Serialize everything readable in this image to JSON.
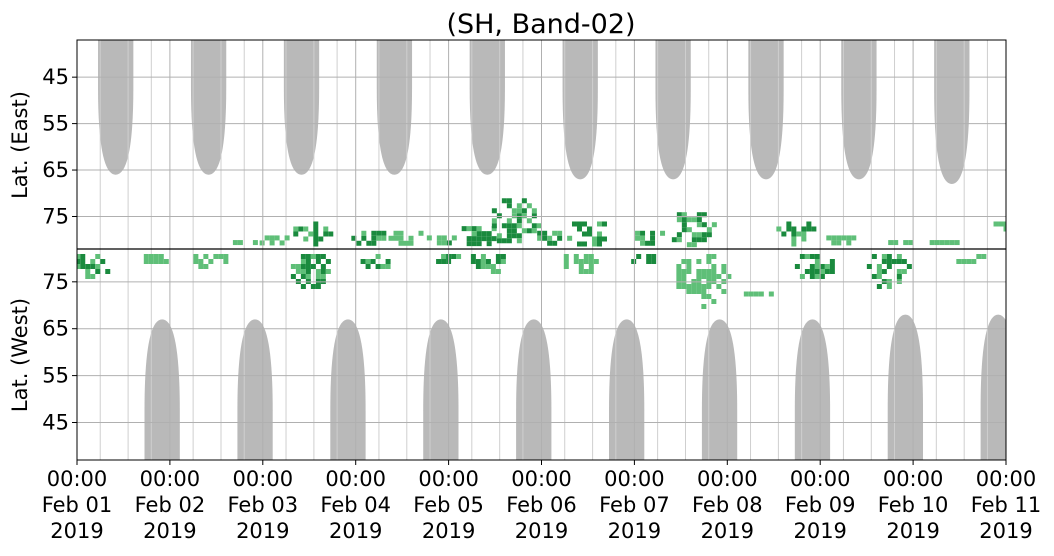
{
  "chart_data": {
    "type": "heatmap",
    "title": "(SH, Band-02)",
    "panels": [
      {
        "ylabel": "Lat. (East)",
        "yticks": [
          45,
          55,
          65,
          75
        ],
        "ylim": [
          37,
          82
        ]
      },
      {
        "ylabel": "Lat. (West)",
        "yticks": [
          75,
          65,
          55,
          45
        ],
        "ylim": [
          82,
          37
        ]
      }
    ],
    "x_ticks": [
      {
        "time": "00:00",
        "date": "Feb 01",
        "year": "2019"
      },
      {
        "time": "00:00",
        "date": "Feb 02",
        "year": "2019"
      },
      {
        "time": "00:00",
        "date": "Feb 03",
        "year": "2019"
      },
      {
        "time": "00:00",
        "date": "Feb 04",
        "year": "2019"
      },
      {
        "time": "00:00",
        "date": "Feb 05",
        "year": "2019"
      },
      {
        "time": "00:00",
        "date": "Feb 06",
        "year": "2019"
      },
      {
        "time": "00:00",
        "date": "Feb 07",
        "year": "2019"
      },
      {
        "time": "00:00",
        "date": "Feb 08",
        "year": "2019"
      },
      {
        "time": "00:00",
        "date": "Feb 09",
        "year": "2019"
      },
      {
        "time": "00:00",
        "date": "Feb 10",
        "year": "2019"
      },
      {
        "time": "00:00",
        "date": "Feb 11",
        "year": "2019"
      }
    ],
    "xlim": [
      "2019-02-01 00:00",
      "2019-02-11 00:00"
    ],
    "grid": true,
    "colors": {
      "no_data": "#b9b9b9",
      "echo_strong": "#1a8a3e",
      "echo_weak": "#5fbf78",
      "grid": "#b0b0b0"
    },
    "no_data_regions": {
      "east": [
        {
          "center": "2019-02-01 10:00",
          "min_lat": 66
        },
        {
          "center": "2019-02-02 10:00",
          "min_lat": 66
        },
        {
          "center": "2019-02-03 10:00",
          "min_lat": 66
        },
        {
          "center": "2019-02-04 10:00",
          "min_lat": 66
        },
        {
          "center": "2019-02-05 10:00",
          "min_lat": 66
        },
        {
          "center": "2019-02-06 10:00",
          "min_lat": 67
        },
        {
          "center": "2019-02-07 10:00",
          "min_lat": 67
        },
        {
          "center": "2019-02-08 10:00",
          "min_lat": 67
        },
        {
          "center": "2019-02-09 10:00",
          "min_lat": 67
        },
        {
          "center": "2019-02-10 10:00",
          "min_lat": 68
        }
      ],
      "west": [
        {
          "center": "2019-02-01 22:00",
          "min_lat": 67
        },
        {
          "center": "2019-02-02 22:00",
          "min_lat": 67
        },
        {
          "center": "2019-02-03 22:00",
          "min_lat": 67
        },
        {
          "center": "2019-02-04 22:00",
          "min_lat": 67
        },
        {
          "center": "2019-02-05 22:00",
          "min_lat": 67
        },
        {
          "center": "2019-02-06 22:00",
          "min_lat": 67
        },
        {
          "center": "2019-02-07 22:00",
          "min_lat": 67
        },
        {
          "center": "2019-02-08 22:00",
          "min_lat": 67
        },
        {
          "center": "2019-02-09 22:00",
          "min_lat": 68
        },
        {
          "center": "2019-02-10 22:00",
          "min_lat": 68
        }
      ]
    },
    "echo_clusters": {
      "east": [
        {
          "day": 1.8,
          "lat_min": 79,
          "lat_max": 81,
          "intensity": "weak"
        },
        {
          "day": 2.1,
          "lat_min": 78,
          "lat_max": 81,
          "intensity": "weak"
        },
        {
          "day": 2.5,
          "lat_min": 75,
          "lat_max": 81,
          "intensity": "strong"
        },
        {
          "day": 3.1,
          "lat_min": 77,
          "lat_max": 81,
          "intensity": "strong"
        },
        {
          "day": 3.5,
          "lat_min": 77,
          "lat_max": 81,
          "intensity": "weak"
        },
        {
          "day": 3.9,
          "lat_min": 78,
          "lat_max": 81,
          "intensity": "strong"
        },
        {
          "day": 4.3,
          "lat_min": 76,
          "lat_max": 81,
          "intensity": "strong"
        },
        {
          "day": 4.7,
          "lat_min": 70,
          "lat_max": 81,
          "intensity": "strong"
        },
        {
          "day": 5.1,
          "lat_min": 77,
          "lat_max": 81,
          "intensity": "strong"
        },
        {
          "day": 5.5,
          "lat_min": 75,
          "lat_max": 81,
          "intensity": "strong"
        },
        {
          "day": 6.1,
          "lat_min": 77,
          "lat_max": 81,
          "intensity": "strong"
        },
        {
          "day": 6.6,
          "lat_min": 73,
          "lat_max": 81,
          "intensity": "strong"
        },
        {
          "day": 7.7,
          "lat_min": 75,
          "lat_max": 81,
          "intensity": "strong"
        },
        {
          "day": 8.2,
          "lat_min": 78,
          "lat_max": 81,
          "intensity": "weak"
        },
        {
          "day": 8.8,
          "lat_min": 79,
          "lat_max": 81,
          "intensity": "weak"
        },
        {
          "day": 9.3,
          "lat_min": 79,
          "lat_max": 81,
          "intensity": "weak"
        },
        {
          "day": 10.0,
          "lat_min": 75,
          "lat_max": 78,
          "intensity": "weak"
        }
      ],
      "west": [
        {
          "day": 0.1,
          "lat_min": 76,
          "lat_max": 82,
          "intensity": "strong"
        },
        {
          "day": 0.8,
          "lat_min": 79,
          "lat_max": 82,
          "intensity": "weak"
        },
        {
          "day": 1.4,
          "lat_min": 78,
          "lat_max": 82,
          "intensity": "weak"
        },
        {
          "day": 2.5,
          "lat_min": 74,
          "lat_max": 82,
          "intensity": "strong"
        },
        {
          "day": 3.2,
          "lat_min": 78,
          "lat_max": 82,
          "intensity": "strong"
        },
        {
          "day": 4.0,
          "lat_min": 79,
          "lat_max": 82,
          "intensity": "strong"
        },
        {
          "day": 4.4,
          "lat_min": 77,
          "lat_max": 82,
          "intensity": "strong"
        },
        {
          "day": 5.4,
          "lat_min": 77,
          "lat_max": 82,
          "intensity": "weak"
        },
        {
          "day": 6.1,
          "lat_min": 79,
          "lat_max": 82,
          "intensity": "strong"
        },
        {
          "day": 6.7,
          "lat_min": 70,
          "lat_max": 82,
          "intensity": "weak"
        },
        {
          "day": 7.3,
          "lat_min": 72,
          "lat_max": 74,
          "intensity": "weak"
        },
        {
          "day": 7.9,
          "lat_min": 76,
          "lat_max": 82,
          "intensity": "strong"
        },
        {
          "day": 8.7,
          "lat_min": 74,
          "lat_max": 82,
          "intensity": "strong"
        },
        {
          "day": 9.6,
          "lat_min": 79,
          "lat_max": 82,
          "intensity": "weak"
        }
      ]
    }
  }
}
